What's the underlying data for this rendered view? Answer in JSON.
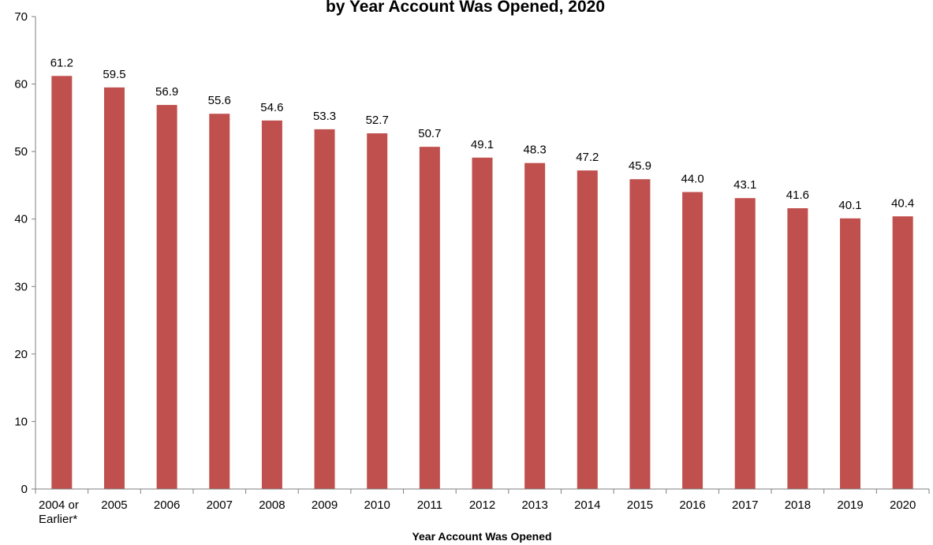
{
  "chart_data": {
    "type": "bar",
    "title": "by Year Account Was Opened, 2020",
    "xlabel": "Year Account Was Opened",
    "ylabel": "",
    "ylim": [
      0,
      70
    ],
    "yticks": [
      0,
      10,
      20,
      30,
      40,
      50,
      60,
      70
    ],
    "grid": false,
    "categories": [
      [
        "2004 or",
        "Earlier*"
      ],
      [
        "2005"
      ],
      [
        "2006"
      ],
      [
        "2007"
      ],
      [
        "2008"
      ],
      [
        "2009"
      ],
      [
        "2010"
      ],
      [
        "2011"
      ],
      [
        "2012"
      ],
      [
        "2013"
      ],
      [
        "2014"
      ],
      [
        "2015"
      ],
      [
        "2016"
      ],
      [
        "2017"
      ],
      [
        "2018"
      ],
      [
        "2019"
      ],
      [
        "2020"
      ]
    ],
    "series": [
      {
        "values": [
          61.2,
          59.5,
          56.9,
          55.6,
          54.6,
          53.3,
          52.7,
          50.7,
          49.1,
          48.3,
          47.2,
          45.9,
          44.0,
          43.1,
          41.6,
          40.1,
          40.4
        ],
        "labels": [
          "61.2",
          "59.5",
          "56.9",
          "55.6",
          "54.6",
          "53.3",
          "52.7",
          "50.7",
          "49.1",
          "48.3",
          "47.2",
          "45.9",
          "44.0",
          "43.1",
          "41.6",
          "40.1",
          "40.4"
        ]
      }
    ],
    "colors": {
      "bar": "#c0504d",
      "axis": "#7f7f7f"
    }
  }
}
